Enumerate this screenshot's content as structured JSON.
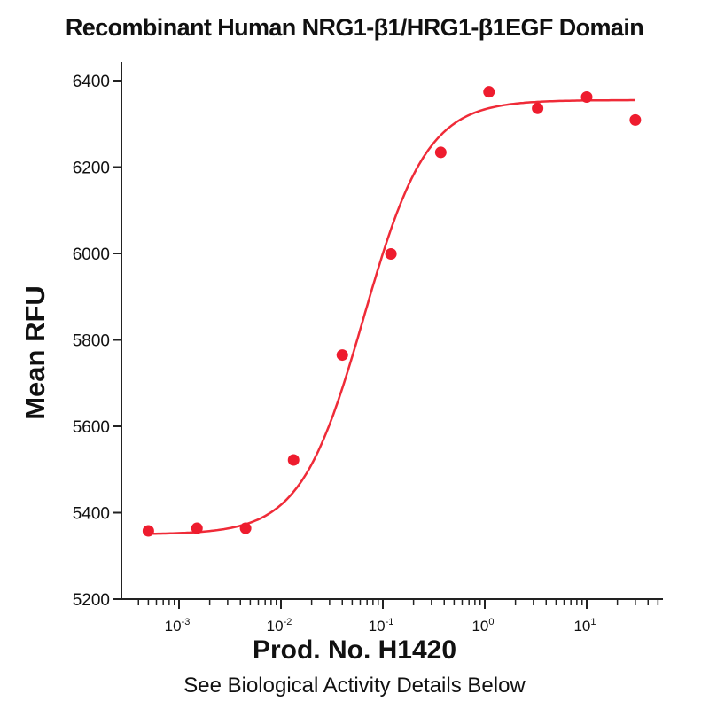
{
  "chart_data": {
    "type": "scatter",
    "title": "Recombinant Human NRG1-β1/HRG1-β1EGF Domain",
    "xlabel": "Prod. No. H1420",
    "ylabel": "Mean RFU",
    "note": "See Biological Activity Details Below",
    "x_scale": "log",
    "xlim": [
      0.0003,
      50
    ],
    "ylim": [
      5200,
      6450
    ],
    "yticks": [
      5200,
      5400,
      5600,
      5800,
      6000,
      6200,
      6400
    ],
    "xticks": [
      {
        "base": "10",
        "exp": "-3",
        "value": 0.001
      },
      {
        "base": "10",
        "exp": "-2",
        "value": 0.01
      },
      {
        "base": "10",
        "exp": "-1",
        "value": 0.1
      },
      {
        "base": "10",
        "exp": "0",
        "value": 1
      },
      {
        "base": "10",
        "exp": "1",
        "value": 10
      }
    ],
    "series": [
      {
        "points": [
          {
            "x": 0.0005,
            "y": 5358
          },
          {
            "x": 0.0015,
            "y": 5364
          },
          {
            "x": 0.0045,
            "y": 5364
          },
          {
            "x": 0.0133,
            "y": 5522
          },
          {
            "x": 0.04,
            "y": 5765
          },
          {
            "x": 0.12,
            "y": 5999
          },
          {
            "x": 0.37,
            "y": 6234
          },
          {
            "x": 1.1,
            "y": 6374
          },
          {
            "x": 3.3,
            "y": 6336
          },
          {
            "x": 10,
            "y": 6362
          },
          {
            "x": 30,
            "y": 6309
          }
        ],
        "fit": {
          "model": "4PL",
          "bottom": 5350,
          "top": 6355,
          "ec50": 0.065,
          "hill": 1.4
        }
      }
    ],
    "colors": {
      "points": "#ee1c2e",
      "fit": "#ef2b38",
      "axis": "#222222"
    },
    "grid": false,
    "legend": "none"
  }
}
